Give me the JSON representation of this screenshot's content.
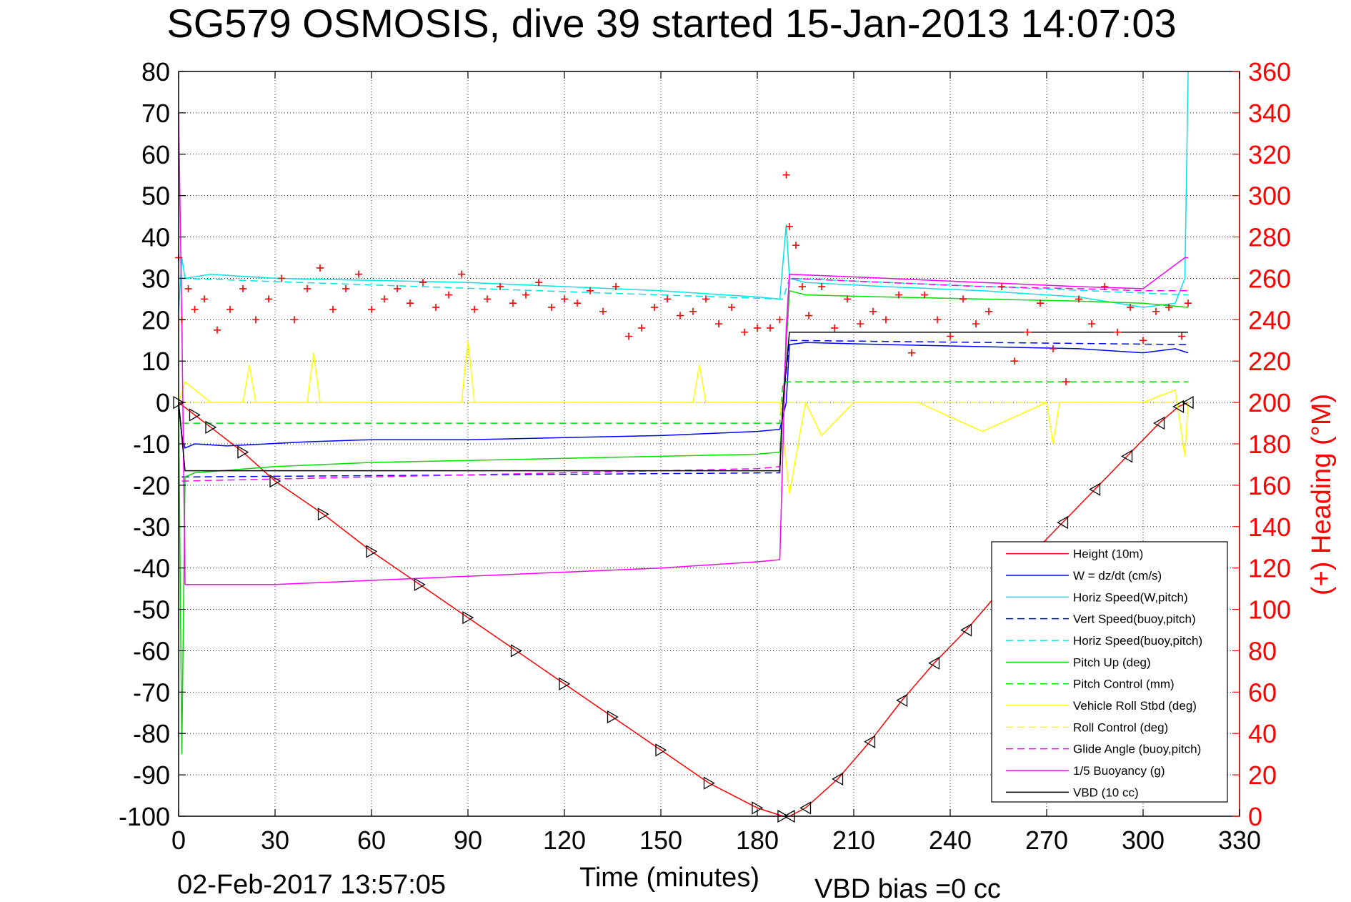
{
  "chart_data": {
    "type": "line",
    "title": "SG579 OSMOSIS, dive 39 started 15-Jan-2013 14:07:03",
    "xlabel": "Time (minutes)",
    "ylabel": "",
    "y2label": "(+) Heading (°M)",
    "footer_left": "02-Feb-2017 13:57:05",
    "footer_right": "VBD bias =0 cc",
    "xlim": [
      0,
      330
    ],
    "ylim": [
      -100,
      80
    ],
    "y2lim": [
      0,
      360
    ],
    "xticks": [
      0,
      30,
      60,
      90,
      120,
      150,
      180,
      210,
      240,
      270,
      300,
      330
    ],
    "yticks": [
      80,
      70,
      60,
      50,
      40,
      30,
      20,
      10,
      0,
      -10,
      -20,
      -30,
      -40,
      -50,
      -60,
      -70,
      -80,
      -90,
      -100
    ],
    "y2ticks": [
      360,
      340,
      320,
      300,
      280,
      260,
      240,
      220,
      200,
      180,
      160,
      140,
      120,
      100,
      80,
      60,
      40,
      20,
      0
    ],
    "grid": true,
    "legend_position": "lower-right",
    "colors": {
      "red": "#ff0000",
      "blue": "#0000ff",
      "cyan": "#00e5e5",
      "green": "#00dd00",
      "yellow": "#ffff00",
      "magenta": "#ff00ff",
      "black": "#000000"
    },
    "series": [
      {
        "name": "Height (10m)",
        "color": "#ff0000",
        "style": "solid",
        "x": [
          0,
          5,
          10,
          20,
          30,
          45,
          60,
          75,
          90,
          105,
          120,
          135,
          150,
          165,
          180,
          188,
          190,
          195,
          205,
          215,
          225,
          235,
          245,
          255,
          265,
          275,
          285,
          295,
          305,
          311,
          314
        ],
        "y": [
          0,
          -3,
          -6,
          -12,
          -19,
          -27,
          -36,
          -44,
          -52,
          -60,
          -68,
          -76,
          -84,
          -92,
          -98,
          -100,
          -100,
          -98,
          -91,
          -82,
          -72,
          -63,
          -55,
          -46,
          -37,
          -29,
          -21,
          -13,
          -5,
          -1,
          0
        ]
      },
      {
        "name": "W = dz/dt (cm/s)",
        "color": "#0000ff",
        "style": "solid",
        "x": [
          0,
          1,
          2,
          5,
          15,
          40,
          60,
          90,
          120,
          150,
          180,
          187,
          189,
          190,
          195,
          220,
          250,
          280,
          300,
          310,
          314
        ],
        "y": [
          0,
          -8,
          -11,
          -10,
          -10.5,
          -9.5,
          -9,
          -9,
          -8.5,
          -8,
          -7,
          -6.5,
          0,
          14,
          14.5,
          14,
          13.5,
          13,
          12,
          13,
          12
        ]
      },
      {
        "name": "Horiz Speed(W,pitch)",
        "color": "#00e5e5",
        "style": "solid",
        "x": [
          0,
          1,
          2,
          10,
          30,
          60,
          90,
          120,
          150,
          180,
          187,
          189,
          190,
          195,
          220,
          250,
          280,
          300,
          310,
          313,
          314
        ],
        "y": [
          22,
          35,
          30,
          31,
          30,
          29.5,
          29,
          28,
          27,
          25.5,
          25,
          43,
          30,
          29,
          28,
          27,
          25.5,
          23,
          24,
          30,
          80
        ]
      },
      {
        "name": "Vert Speed(buoy,pitch)",
        "color": "#0000ff",
        "style": "dashed",
        "x": [
          1,
          187,
          188,
          190,
          314
        ],
        "y": [
          -18,
          -17,
          0,
          15,
          14
        ]
      },
      {
        "name": "Horiz Speed(buoy,pitch)",
        "color": "#00e5e5",
        "style": "dashed",
        "x": [
          1,
          187,
          188,
          190,
          314
        ],
        "y": [
          30,
          25,
          25,
          30,
          26
        ]
      },
      {
        "name": "Pitch Up (deg)",
        "color": "#00dd00",
        "style": "solid",
        "x": [
          0,
          1,
          2,
          5,
          30,
          60,
          90,
          120,
          150,
          180,
          187,
          188,
          190,
          195,
          220,
          250,
          280,
          300,
          314
        ],
        "y": [
          0,
          -85,
          -18,
          -17,
          -15.5,
          -14.5,
          -14,
          -13.5,
          -13,
          -12.5,
          -12,
          0,
          27,
          26,
          25.5,
          25,
          24.5,
          24,
          23
        ]
      },
      {
        "name": "Pitch Control (mm)",
        "color": "#00dd00",
        "style": "dashed",
        "x": [
          1,
          187,
          188,
          314
        ],
        "y": [
          -5,
          -5,
          5,
          5
        ]
      },
      {
        "name": "Vehicle Roll Stbd (deg)",
        "color": "#ffff00",
        "style": "solid",
        "x": [
          0,
          2,
          10,
          20,
          22,
          24,
          40,
          42,
          44,
          60,
          80,
          88,
          90,
          92,
          110,
          120,
          150,
          160,
          162,
          164,
          187,
          190,
          195,
          200,
          210,
          230,
          250,
          270,
          272,
          274,
          300,
          310,
          313,
          314
        ],
        "y": [
          0,
          5,
          0,
          0,
          9,
          0,
          0,
          12,
          0,
          0,
          0,
          0,
          15,
          0,
          0,
          0,
          0,
          0,
          9,
          0,
          0,
          -22,
          0,
          -8,
          0,
          0,
          -7,
          0,
          -10,
          0,
          0,
          3,
          -13,
          0
        ]
      },
      {
        "name": "Roll Control (deg)",
        "color": "#ffff00",
        "style": "dashed",
        "x": [
          1,
          187,
          188,
          314
        ],
        "y": [
          0,
          0,
          0,
          0
        ]
      },
      {
        "name": "Glide Angle (buoy,pitch)",
        "color": "#ff00ff",
        "style": "dashed",
        "x": [
          1,
          30,
          60,
          90,
          120,
          150,
          180,
          187,
          188,
          190,
          220,
          250,
          280,
          300,
          314
        ],
        "y": [
          -19,
          -18.5,
          -18,
          -17.5,
          -17,
          -16.5,
          -16,
          -15.5,
          0,
          30,
          29,
          28,
          27.5,
          27,
          27
        ]
      },
      {
        "name": "1/5 Buoyancy (g)",
        "color": "#ff00ff",
        "style": "solid",
        "x": [
          0,
          1,
          2,
          30,
          60,
          90,
          120,
          150,
          180,
          187,
          189,
          190,
          220,
          250,
          280,
          300,
          313,
          314
        ],
        "y": [
          70,
          20,
          -44,
          -44,
          -43,
          -42,
          -41,
          -40,
          -38.5,
          -38,
          18,
          31,
          30,
          29,
          28,
          27.5,
          35,
          35
        ]
      },
      {
        "name": "VBD (10 cc)",
        "color": "#000000",
        "style": "solid",
        "x": [
          0,
          2,
          187,
          188,
          190,
          314
        ],
        "y": [
          0,
          -16.5,
          -16.5,
          0,
          17,
          17
        ]
      }
    ],
    "heading_series": {
      "name": "Heading (°M)",
      "axis": "right",
      "color": "#ff0000",
      "marker": "+",
      "x": [
        0,
        1,
        3,
        5,
        8,
        12,
        16,
        20,
        24,
        28,
        32,
        36,
        40,
        44,
        48,
        52,
        56,
        60,
        64,
        68,
        72,
        76,
        80,
        84,
        88,
        92,
        96,
        100,
        104,
        108,
        112,
        116,
        120,
        124,
        128,
        132,
        136,
        140,
        144,
        148,
        152,
        156,
        160,
        164,
        168,
        172,
        176,
        180,
        184,
        187,
        189,
        190,
        192,
        194,
        196,
        200,
        204,
        208,
        212,
        216,
        220,
        224,
        228,
        232,
        236,
        240,
        244,
        248,
        252,
        256,
        260,
        264,
        268,
        272,
        276,
        280,
        284,
        288,
        292,
        296,
        300,
        304,
        308,
        312,
        314
      ],
      "y": [
        270,
        240,
        255,
        245,
        250,
        235,
        245,
        255,
        240,
        250,
        260,
        240,
        255,
        265,
        245,
        255,
        262,
        245,
        250,
        255,
        248,
        258,
        246,
        252,
        262,
        245,
        250,
        256,
        248,
        252,
        258,
        246,
        250,
        248,
        254,
        244,
        256,
        232,
        236,
        246,
        250,
        242,
        244,
        250,
        238,
        246,
        234,
        236,
        236,
        240,
        310,
        285,
        276,
        256,
        242,
        256,
        236,
        250,
        238,
        244,
        240,
        252,
        224,
        252,
        240,
        232,
        250,
        238,
        244,
        256,
        220,
        234,
        248,
        226,
        210,
        250,
        238,
        256,
        234,
        246,
        230,
        244,
        246,
        232,
        248
      ]
    }
  }
}
